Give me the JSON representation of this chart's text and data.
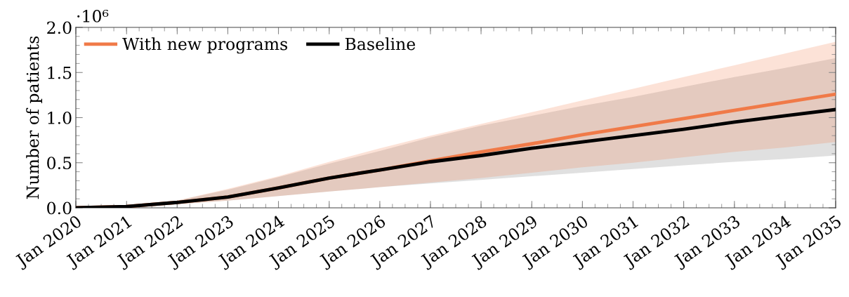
{
  "chart_data": {
    "type": "line",
    "ylabel": "Number of patients",
    "annotations": [
      "·10⁶"
    ],
    "x": [
      "2020-01",
      "2021-01",
      "2022-01",
      "2023-01",
      "2024-01",
      "2025-01",
      "2026-01",
      "2027-01",
      "2028-01",
      "2029-01",
      "2030-01",
      "2031-01",
      "2032-01",
      "2033-01",
      "2034-01",
      "2035-01"
    ],
    "series": [
      {
        "name": "With new programs",
        "color": "#f07a48",
        "values": [
          0,
          0.015,
          0.06,
          0.12,
          0.22,
          0.33,
          0.42,
          0.52,
          0.62,
          0.71,
          0.81,
          0.9,
          0.99,
          1.08,
          1.17,
          1.26
        ],
        "lower": [
          0,
          0.01,
          0.04,
          0.08,
          0.13,
          0.18,
          0.23,
          0.28,
          0.33,
          0.39,
          0.45,
          0.5,
          0.56,
          0.62,
          0.67,
          0.73
        ],
        "upper": [
          0,
          0.02,
          0.08,
          0.21,
          0.35,
          0.51,
          0.66,
          0.8,
          0.93,
          1.06,
          1.19,
          1.32,
          1.45,
          1.58,
          1.71,
          1.84
        ]
      },
      {
        "name": "Baseline",
        "color": "#000000",
        "values": [
          0,
          0.015,
          0.06,
          0.12,
          0.22,
          0.33,
          0.42,
          0.51,
          0.58,
          0.66,
          0.73,
          0.8,
          0.87,
          0.95,
          1.02,
          1.09
        ],
        "lower": [
          0,
          0.01,
          0.04,
          0.08,
          0.13,
          0.18,
          0.23,
          0.27,
          0.31,
          0.35,
          0.39,
          0.43,
          0.47,
          0.51,
          0.54,
          0.58
        ],
        "upper": [
          0,
          0.02,
          0.08,
          0.2,
          0.34,
          0.49,
          0.63,
          0.78,
          0.91,
          1.02,
          1.13,
          1.23,
          1.34,
          1.45,
          1.55,
          1.66
        ]
      }
    ],
    "xlim": [
      "2020-01",
      "2035-01"
    ],
    "xticks": [
      {
        "value": "2020-01",
        "label": "Jan 2020"
      },
      {
        "value": "2021-01",
        "label": "Jan 2021"
      },
      {
        "value": "2022-01",
        "label": "Jan 2022"
      },
      {
        "value": "2023-01",
        "label": "Jan 2023"
      },
      {
        "value": "2024-01",
        "label": "Jan 2024"
      },
      {
        "value": "2025-01",
        "label": "Jan 2025"
      },
      {
        "value": "2026-01",
        "label": "Jan 2026"
      },
      {
        "value": "2027-01",
        "label": "Jan 2027"
      },
      {
        "value": "2028-01",
        "label": "Jan 2028"
      },
      {
        "value": "2029-01",
        "label": "Jan 2029"
      },
      {
        "value": "2030-01",
        "label": "Jan 2030"
      },
      {
        "value": "2031-01",
        "label": "Jan 2031"
      },
      {
        "value": "2032-01",
        "label": "Jan 2032"
      },
      {
        "value": "2033-01",
        "label": "Jan 2033"
      },
      {
        "value": "2034-01",
        "label": "Jan 2034"
      },
      {
        "value": "2035-01",
        "label": "Jan 2035"
      }
    ],
    "ylim": [
      0,
      2.0
    ],
    "yticks": [
      {
        "value": 0,
        "label": "0.0"
      },
      {
        "value": 0.5,
        "label": "0.5"
      },
      {
        "value": 1.0,
        "label": "1.0"
      },
      {
        "value": 1.5,
        "label": "1.5"
      },
      {
        "value": 2.0,
        "label": "2.0"
      }
    ],
    "legend": "top left",
    "grid": false,
    "marker": "none",
    "line_style": "solid"
  }
}
